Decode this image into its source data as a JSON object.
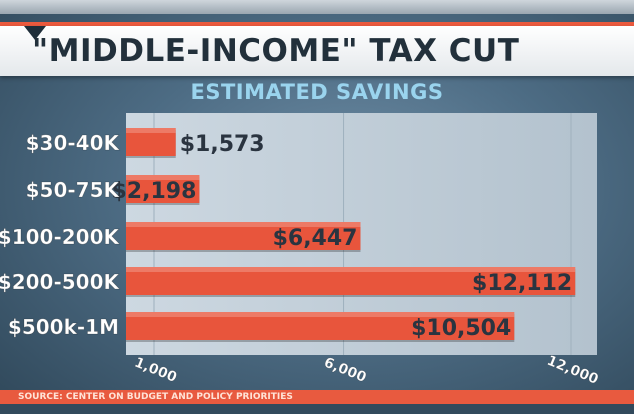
{
  "header": {
    "title": "\"MIDDLE-INCOME\" TAX CUT",
    "subtitle": "ESTIMATED SAVINGS"
  },
  "footer": {
    "source": "SOURCE: CENTER ON BUDGET AND POLICY PRIORITIES"
  },
  "colors": {
    "bar": "#e8553c",
    "value_label": "#2a3440",
    "category_label": "#ffffff",
    "tick_label": "#ffffff"
  },
  "chart_data": {
    "type": "bar",
    "orientation": "horizontal",
    "title": "\"MIDDLE-INCOME\" TAX CUT",
    "subtitle": "ESTIMATED SAVINGS",
    "categories": [
      "$30-40K",
      "$50-75K",
      "$100-200K",
      "$200-500K",
      "$500k-1M"
    ],
    "values": [
      1573,
      2198,
      6447,
      12112,
      10504
    ],
    "value_labels": [
      "$1,573",
      "$2,198",
      "$6,447",
      "$12,112",
      "$10,504"
    ],
    "xticks": [
      1000,
      6000,
      12000
    ],
    "xtick_labels": [
      "1,000",
      "6,000",
      "12,000"
    ],
    "xlim": [
      0,
      12500
    ],
    "grid": true,
    "legend": "none"
  }
}
